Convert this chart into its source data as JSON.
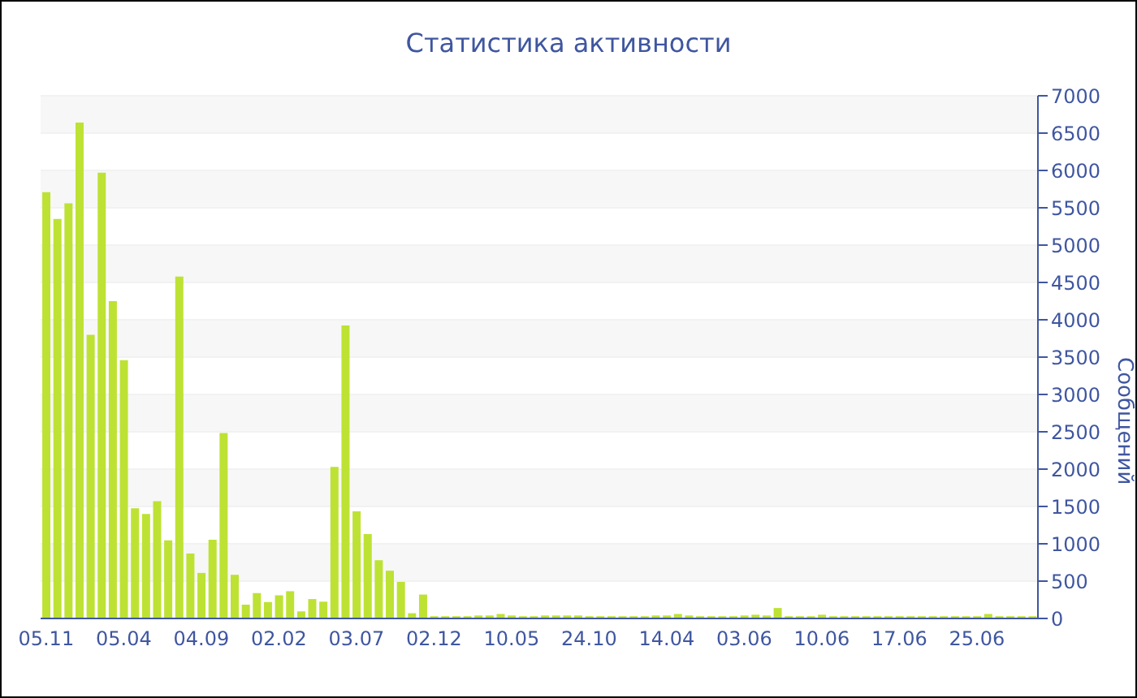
{
  "chart_data": {
    "type": "bar",
    "title": "Статистика активности",
    "ylabel": "Сообщений",
    "categories": [
      "05.11",
      null,
      null,
      null,
      null,
      null,
      null,
      "05.04",
      null,
      null,
      null,
      null,
      null,
      null,
      "04.09",
      null,
      null,
      null,
      null,
      null,
      null,
      "02.02",
      null,
      null,
      null,
      null,
      null,
      null,
      "03.07",
      null,
      null,
      null,
      null,
      null,
      null,
      "02.12",
      null,
      null,
      null,
      null,
      null,
      null,
      "10.05",
      null,
      null,
      null,
      null,
      null,
      null,
      "24.10",
      null,
      null,
      null,
      null,
      null,
      null,
      "14.04",
      null,
      null,
      null,
      null,
      null,
      null,
      "03.06",
      null,
      null,
      null,
      null,
      null,
      null,
      "10.06",
      null,
      null,
      null,
      null,
      null,
      null,
      "17.06",
      null,
      null,
      null,
      null,
      null,
      null,
      "25.06",
      null,
      null,
      null,
      null,
      null
    ],
    "values": [
      5710,
      5350,
      5560,
      6640,
      3800,
      5970,
      4250,
      3460,
      1475,
      1400,
      1570,
      1045,
      4580,
      870,
      610,
      1055,
      2485,
      585,
      185,
      340,
      220,
      310,
      365,
      95,
      260,
      225,
      2030,
      3925,
      1435,
      1130,
      780,
      640,
      490,
      70,
      320,
      30,
      30,
      30,
      30,
      40,
      40,
      60,
      40,
      30,
      30,
      40,
      40,
      40,
      40,
      30,
      30,
      30,
      30,
      30,
      30,
      40,
      40,
      60,
      40,
      30,
      30,
      30,
      30,
      40,
      50,
      40,
      140,
      30,
      30,
      30,
      50,
      30,
      30,
      30,
      30,
      30,
      30,
      30,
      30,
      30,
      30,
      30,
      30,
      30,
      30,
      60,
      30,
      30,
      30,
      30
    ],
    "color": "#bde234",
    "ylim": [
      0,
      7000
    ],
    "yticks": [
      0,
      500,
      1000,
      1500,
      2000,
      2500,
      3000,
      3500,
      4000,
      4500,
      5000,
      5500,
      6000,
      6500,
      7000
    ],
    "grid": "y"
  }
}
